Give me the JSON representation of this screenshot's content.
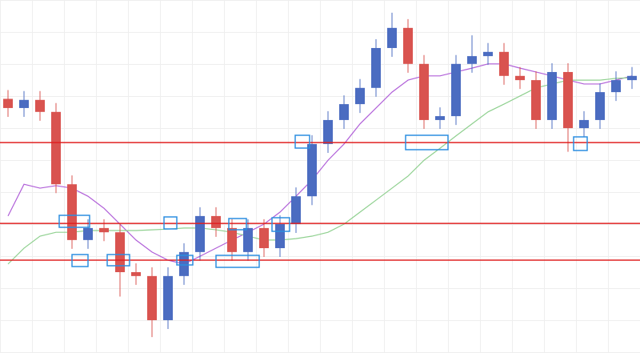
{
  "chart_data": {
    "type": "candlestick",
    "ylim": [
      0,
      100
    ],
    "up_color": "#4b6cc1",
    "down_color": "#d9534f",
    "open": [
      72,
      69.4,
      71.7,
      68.3,
      47.8,
      32.0,
      35.4,
      34.2,
      22.9,
      21.8,
      9.3,
      21.8,
      28.6,
      38.8,
      35.4,
      28.6,
      35.4,
      29.7,
      36.5,
      44.4,
      59.2,
      66.0,
      70.5,
      75.1,
      86.4,
      92.1,
      81.9,
      66.0,
      67.1,
      81.9,
      84.1,
      85.3,
      78.5,
      77.3,
      66.0,
      79.6,
      63.7,
      66.0,
      73.9,
      77.3
    ],
    "high": [
      74.5,
      74.2,
      74.2,
      70.8,
      50.3,
      37.9,
      37.9,
      36.7,
      25.4,
      24.3,
      24.3,
      31.1,
      41.3,
      41.3,
      37.9,
      37.9,
      37.9,
      39.0,
      46.9,
      61.7,
      68.5,
      73.0,
      77.6,
      88.9,
      96.4,
      94.6,
      84.4,
      69.6,
      84.4,
      90.0,
      87.8,
      87.8,
      81.0,
      79.8,
      82.1,
      82.1,
      68.5,
      76.4,
      79.8,
      81.0
    ],
    "low": [
      66.9,
      66.9,
      65.8,
      45.3,
      29.5,
      29.5,
      31.7,
      16.0,
      19.3,
      4.5,
      6.8,
      19.3,
      26.1,
      32.9,
      26.1,
      26.1,
      27.2,
      27.2,
      34.0,
      41.9,
      56.7,
      63.5,
      68.0,
      72.6,
      83.9,
      79.4,
      63.5,
      63.5,
      64.6,
      79.4,
      81.6,
      76.0,
      74.8,
      63.5,
      63.5,
      57.0,
      61.2,
      63.5,
      71.4,
      74.8
    ],
    "close": [
      69.4,
      71.7,
      68.3,
      47.8,
      32.0,
      35.4,
      34.2,
      22.9,
      21.8,
      9.3,
      21.8,
      28.6,
      38.8,
      35.4,
      28.6,
      35.4,
      29.7,
      36.5,
      44.4,
      59.2,
      66.0,
      70.5,
      75.1,
      86.4,
      92.1,
      81.9,
      66.0,
      67.1,
      81.9,
      84.1,
      85.3,
      78.5,
      77.3,
      66.0,
      79.6,
      63.7,
      66.0,
      73.9,
      77.3,
      78.5
    ],
    "lines": [
      {
        "color": "#b05fd8",
        "values": [
          38.8,
          47.8,
          46.7,
          47.4,
          46.7,
          44.4,
          41.0,
          36.5,
          32.0,
          28.6,
          26.3,
          25.2,
          27.4,
          29.7,
          32.0,
          34.2,
          36.5,
          39.9,
          44.4,
          49.0,
          54.6,
          59.2,
          64.9,
          69.4,
          73.9,
          77.3,
          78.5,
          78.5,
          79.6,
          80.7,
          81.9,
          81.9,
          80.7,
          79.6,
          78.5,
          77.3,
          76.2,
          76.2,
          77.3,
          78.5
        ]
      },
      {
        "color": "#8fd08f",
        "values": [
          25.2,
          29.7,
          33.1,
          34.2,
          34.2,
          34.7,
          34.7,
          34.7,
          34.7,
          34.9,
          35.1,
          35.4,
          35.4,
          34.9,
          34.2,
          33.1,
          32.0,
          32.0,
          32.4,
          33.1,
          34.2,
          36.5,
          39.9,
          43.3,
          46.7,
          50.1,
          54.6,
          58.0,
          61.5,
          64.9,
          68.3,
          70.5,
          72.8,
          75.1,
          76.2,
          77.3,
          77.3,
          77.3,
          77.8,
          78.0
        ]
      }
    ],
    "hlines": [
      59.6,
      36.7,
      26.3
    ],
    "hline_color": "#e02020"
  }
}
